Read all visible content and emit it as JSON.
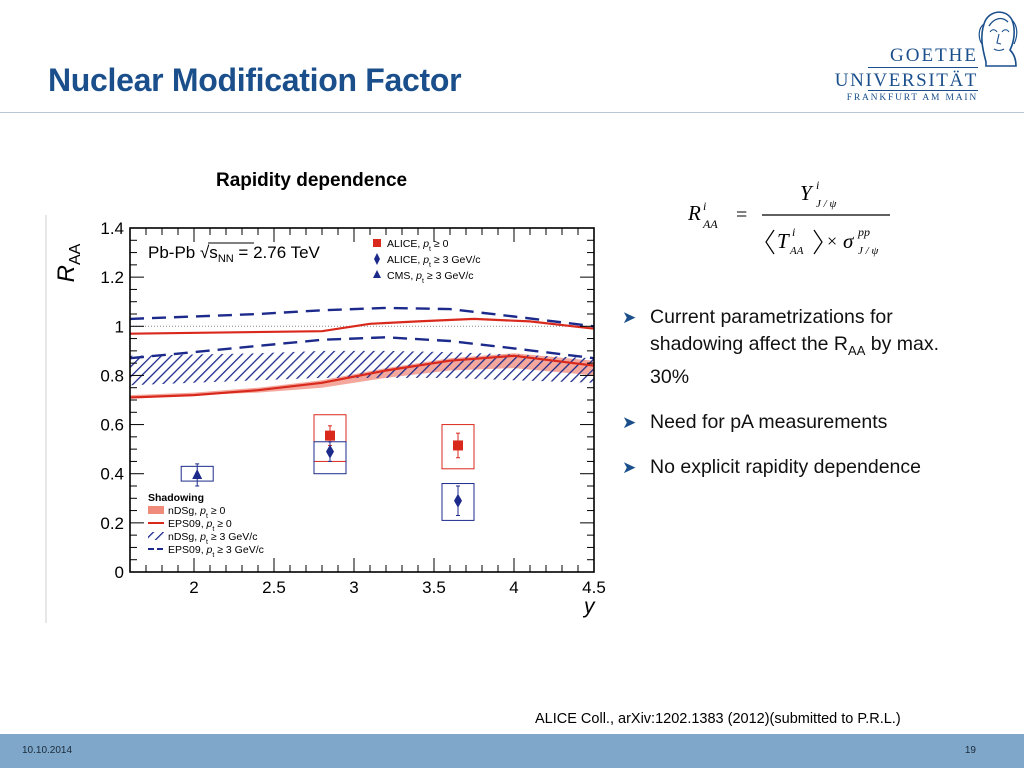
{
  "slide": {
    "title": "Nuclear Modification Factor",
    "date": "10.10.2014",
    "page_number": "19",
    "citation": "ALICE Coll., arXiv:1202.1383 (2012)(submitted to P.R.L.)"
  },
  "logo": {
    "line1": "GOETHE",
    "line2": "UNIVERSITÄT",
    "line3": "FRANKFURT AM MAIN"
  },
  "bullets": [
    {
      "text": "Current parametrizations for shadowing affect the R",
      "sub": "AA",
      "tail": " by max. 30%"
    },
    {
      "text": "Need for pA measurements",
      "sub": "",
      "tail": ""
    },
    {
      "text": "No explicit rapidity dependence",
      "sub": "",
      "tail": ""
    }
  ],
  "formula": {
    "lhs": "R",
    "lhs_sup": "i",
    "lhs_sub": "AA",
    "num": "Y",
    "num_sup": "i",
    "num_sub": "J / ψ",
    "den_T": "T",
    "den_T_sup": "i",
    "den_T_sub": "AA",
    "den_sigma": "σ",
    "den_sigma_sup": "pp",
    "den_sigma_sub": "J / ψ",
    "equals": "=",
    "times": "×"
  },
  "chart_data": {
    "type": "scatter",
    "heading": "Rapidity dependence",
    "system_label": "Pb-Pb √s",
    "system_sub": "NN",
    "system_value": " = 2.76 TeV",
    "xlabel": "y",
    "ylabel": "R",
    "ylabel_sub": "AA",
    "xlim": [
      1.6,
      4.5
    ],
    "ylim": [
      0,
      1.4
    ],
    "xticks": [
      "2",
      "2.5",
      "3",
      "3.5",
      "4",
      "4.5"
    ],
    "yticks": [
      "0",
      "0.2",
      "0.4",
      "0.6",
      "0.8",
      "1",
      "1.2",
      "1.4"
    ],
    "colors": {
      "red": "#d9291c",
      "blue": "#1c2a8c",
      "red_band": "#f08b7c"
    },
    "legend_points": [
      {
        "label": "ALICE, ",
        "pt": "p",
        "pt_sub": "t",
        "cut": " ≥ 0",
        "marker": "square",
        "color": "#d9291c"
      },
      {
        "label": "ALICE, ",
        "pt": "p",
        "pt_sub": "t",
        "cut": " ≥ 3 GeV/c",
        "marker": "diamond",
        "color": "#1c2a8c"
      },
      {
        "label": "CMS, ",
        "pt": "p",
        "pt_sub": "t",
        "cut": " ≥ 3 GeV/c",
        "marker": "triangle",
        "color": "#1c2a8c"
      }
    ],
    "shadowing_title": "Shadowing",
    "legend_models": [
      {
        "label": "nDSg, ",
        "pt": "p",
        "pt_sub": "t",
        "cut": " ≥ 0",
        "style": "red-band"
      },
      {
        "label": "EPS09, ",
        "pt": "p",
        "pt_sub": "t",
        "cut": " ≥ 0",
        "style": "red-line"
      },
      {
        "label": "nDSg, ",
        "pt": "p",
        "pt_sub": "t",
        "cut": " ≥ 3 GeV/c",
        "style": "blue-hatch"
      },
      {
        "label": "EPS09, ",
        "pt": "p",
        "pt_sub": "t",
        "cut": " ≥ 3 GeV/c",
        "style": "blue-dash"
      }
    ],
    "series": [
      {
        "name": "ALICE, pt ≥ 0",
        "marker": "square",
        "color": "#d9291c",
        "points": [
          {
            "x": 2.85,
            "y": 0.555,
            "err": 0.04,
            "sys_lo": 0.45,
            "sys_hi": 0.64,
            "xw": 0.1
          },
          {
            "x": 3.65,
            "y": 0.515,
            "err": 0.05,
            "sys_lo": 0.42,
            "sys_hi": 0.6,
            "xw": 0.1
          }
        ]
      },
      {
        "name": "ALICE, pt ≥ 3 GeV/c",
        "marker": "diamond",
        "color": "#1c2a8c",
        "points": [
          {
            "x": 2.85,
            "y": 0.49,
            "err": 0.04,
            "sys_lo": 0.4,
            "sys_hi": 0.53,
            "xw": 0.1
          },
          {
            "x": 3.65,
            "y": 0.29,
            "err": 0.06,
            "sys_lo": 0.21,
            "sys_hi": 0.36,
            "xw": 0.1
          }
        ]
      },
      {
        "name": "CMS, pt ≥ 3 GeV/c",
        "marker": "triangle",
        "color": "#1c2a8c",
        "points": [
          {
            "x": 2.02,
            "y": 0.395,
            "err": 0.045,
            "sys_lo": 0.37,
            "sys_hi": 0.43,
            "xw": 0.1
          }
        ]
      }
    ],
    "models": {
      "eps09_pt0_red": {
        "x": [
          1.6,
          2.8,
          3.1,
          3.4,
          3.75,
          4.1,
          4.5
        ],
        "y": [
          0.97,
          0.98,
          1.01,
          1.02,
          1.03,
          1.02,
          0.99
        ]
      },
      "eps09_pt0_red_low": {
        "x": [
          1.6,
          2.0,
          2.4,
          2.8,
          3.2,
          3.6,
          4.0,
          4.5
        ],
        "y": [
          0.71,
          0.72,
          0.74,
          0.77,
          0.82,
          0.86,
          0.88,
          0.84
        ]
      },
      "ndsg_pt0_band_upper": {
        "x": [
          1.6,
          2.0,
          2.4,
          2.8,
          3.2,
          3.6,
          4.0,
          4.5
        ],
        "y": [
          0.72,
          0.73,
          0.75,
          0.78,
          0.83,
          0.87,
          0.89,
          0.86
        ]
      },
      "ndsg_pt0_band_lower": {
        "x": [
          1.6,
          2.0,
          2.4,
          2.8,
          3.2,
          3.6,
          4.0,
          4.5
        ],
        "y": [
          0.71,
          0.72,
          0.73,
          0.75,
          0.79,
          0.82,
          0.83,
          0.8
        ]
      },
      "ndsg_pt3_hatch_upper": {
        "x": [
          1.6,
          2.0,
          2.4,
          2.8,
          3.2,
          3.6,
          4.0,
          4.5
        ],
        "y": [
          0.88,
          0.885,
          0.89,
          0.9,
          0.9,
          0.895,
          0.885,
          0.87
        ]
      },
      "ndsg_pt3_hatch_lower": {
        "x": [
          1.6,
          2.0,
          2.4,
          2.8,
          3.2,
          3.6,
          4.0,
          4.5
        ],
        "y": [
          0.76,
          0.77,
          0.78,
          0.79,
          0.79,
          0.79,
          0.78,
          0.77
        ]
      },
      "eps09_pt3_dash_upper": {
        "x": [
          1.6,
          2.0,
          2.4,
          2.8,
          3.2,
          3.6,
          4.0,
          4.5
        ],
        "y": [
          1.03,
          1.04,
          1.05,
          1.065,
          1.075,
          1.07,
          1.04,
          1.0
        ]
      },
      "eps09_pt3_dash_lower": {
        "x": [
          1.6,
          2.0,
          2.4,
          2.8,
          3.2,
          3.6,
          4.0,
          4.5
        ],
        "y": [
          0.87,
          0.895,
          0.92,
          0.945,
          0.955,
          0.94,
          0.91,
          0.87
        ]
      }
    },
    "reference_line_y": 1.0
  }
}
